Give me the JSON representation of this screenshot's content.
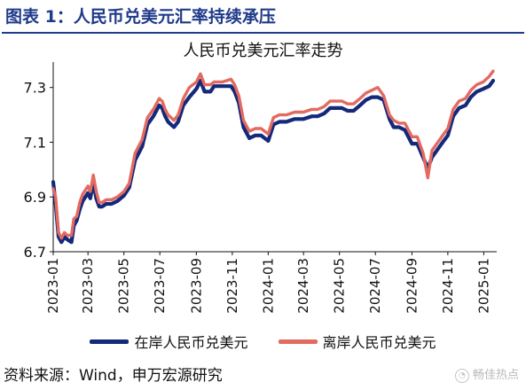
{
  "heading": "图表 1：人民币兑美元汇率持续承压",
  "source": "资料来源：Wind，申万宏源研究",
  "watermark": "畅佳热点",
  "colors": {
    "heading": "#1f3a8a",
    "onshore": "#14297a",
    "offshore": "#e36a60",
    "axis": "#111111"
  },
  "chart_data": {
    "type": "line",
    "title": "人民币兑美元汇率走势",
    "xlabel": "",
    "ylabel": "",
    "ylim": [
      6.7,
      7.38
    ],
    "yticks": [
      6.7,
      6.9,
      7.1,
      7.3
    ],
    "xlim": [
      "2023-01-01",
      "2025-01-20"
    ],
    "xticks": [
      "2023-01",
      "2023-03",
      "2023-05",
      "2023-07",
      "2023-09",
      "2023-11",
      "2024-01",
      "2024-03",
      "2024-05",
      "2024-07",
      "2024-09",
      "2024-11",
      "2025-01"
    ],
    "grid": false,
    "legend": "bottom",
    "series": [
      {
        "name": "在岸人民币兑美元",
        "color": "#14297a",
        "x": [
          "2023-01-01",
          "2023-01-05",
          "2023-01-10",
          "2023-01-15",
          "2023-01-20",
          "2023-01-25",
          "2023-02-01",
          "2023-02-05",
          "2023-02-10",
          "2023-02-15",
          "2023-02-20",
          "2023-03-01",
          "2023-03-05",
          "2023-03-10",
          "2023-03-15",
          "2023-03-20",
          "2023-03-25",
          "2023-04-01",
          "2023-04-10",
          "2023-04-20",
          "2023-05-01",
          "2023-05-10",
          "2023-05-20",
          "2023-06-01",
          "2023-06-10",
          "2023-06-20",
          "2023-06-30",
          "2023-07-05",
          "2023-07-10",
          "2023-07-15",
          "2023-07-25",
          "2023-08-01",
          "2023-08-10",
          "2023-08-20",
          "2023-09-01",
          "2023-09-08",
          "2023-09-15",
          "2023-09-25",
          "2023-10-01",
          "2023-10-15",
          "2023-10-30",
          "2023-11-05",
          "2023-11-12",
          "2023-11-20",
          "2023-11-30",
          "2023-12-10",
          "2023-12-20",
          "2024-01-01",
          "2024-01-10",
          "2024-01-20",
          "2024-02-01",
          "2024-02-15",
          "2024-03-01",
          "2024-03-15",
          "2024-03-25",
          "2024-04-05",
          "2024-04-15",
          "2024-04-25",
          "2024-05-05",
          "2024-05-15",
          "2024-05-25",
          "2024-06-05",
          "2024-06-15",
          "2024-06-25",
          "2024-07-05",
          "2024-07-15",
          "2024-07-25",
          "2024-08-01",
          "2024-08-10",
          "2024-08-20",
          "2024-09-01",
          "2024-09-10",
          "2024-09-20",
          "2024-09-28",
          "2024-10-05",
          "2024-10-15",
          "2024-10-25",
          "2024-11-01",
          "2024-11-10",
          "2024-11-20",
          "2024-12-01",
          "2024-12-10",
          "2024-12-20",
          "2024-12-31",
          "2025-01-10",
          "2025-01-17"
        ],
        "values": [
          6.96,
          6.88,
          6.76,
          6.74,
          6.76,
          6.75,
          6.74,
          6.8,
          6.82,
          6.86,
          6.89,
          6.92,
          6.9,
          6.96,
          6.9,
          6.87,
          6.87,
          6.88,
          6.88,
          6.89,
          6.91,
          6.94,
          7.04,
          7.09,
          7.17,
          7.2,
          7.24,
          7.23,
          7.2,
          7.18,
          7.16,
          7.18,
          7.24,
          7.27,
          7.3,
          7.33,
          7.29,
          7.29,
          7.31,
          7.31,
          7.31,
          7.29,
          7.25,
          7.16,
          7.12,
          7.13,
          7.13,
          7.11,
          7.17,
          7.18,
          7.18,
          7.19,
          7.19,
          7.2,
          7.2,
          7.21,
          7.23,
          7.23,
          7.23,
          7.22,
          7.22,
          7.24,
          7.26,
          7.27,
          7.27,
          7.26,
          7.19,
          7.16,
          7.16,
          7.15,
          7.1,
          7.1,
          7.05,
          7.01,
          7.05,
          7.08,
          7.11,
          7.13,
          7.2,
          7.23,
          7.24,
          7.27,
          7.29,
          7.3,
          7.31,
          7.33
        ]
      },
      {
        "name": "离岸人民币兑美元",
        "color": "#e36a60",
        "x": [
          "2023-01-01",
          "2023-01-05",
          "2023-01-10",
          "2023-01-15",
          "2023-01-20",
          "2023-01-25",
          "2023-02-01",
          "2023-02-05",
          "2023-02-10",
          "2023-02-15",
          "2023-02-20",
          "2023-03-01",
          "2023-03-05",
          "2023-03-10",
          "2023-03-15",
          "2023-03-20",
          "2023-03-25",
          "2023-04-01",
          "2023-04-10",
          "2023-04-20",
          "2023-05-01",
          "2023-05-10",
          "2023-05-20",
          "2023-06-01",
          "2023-06-10",
          "2023-06-20",
          "2023-06-30",
          "2023-07-05",
          "2023-07-10",
          "2023-07-15",
          "2023-07-25",
          "2023-08-01",
          "2023-08-10",
          "2023-08-20",
          "2023-09-01",
          "2023-09-08",
          "2023-09-15",
          "2023-09-25",
          "2023-10-01",
          "2023-10-15",
          "2023-10-30",
          "2023-11-05",
          "2023-11-12",
          "2023-11-20",
          "2023-11-30",
          "2023-12-10",
          "2023-12-20",
          "2024-01-01",
          "2024-01-10",
          "2024-01-20",
          "2024-02-01",
          "2024-02-15",
          "2024-03-01",
          "2024-03-15",
          "2024-03-25",
          "2024-04-05",
          "2024-04-15",
          "2024-04-25",
          "2024-05-05",
          "2024-05-15",
          "2024-05-25",
          "2024-06-05",
          "2024-06-15",
          "2024-06-25",
          "2024-07-05",
          "2024-07-15",
          "2024-07-25",
          "2024-08-01",
          "2024-08-10",
          "2024-08-20",
          "2024-09-01",
          "2024-09-10",
          "2024-09-20",
          "2024-09-28",
          "2024-10-05",
          "2024-10-15",
          "2024-10-25",
          "2024-11-01",
          "2024-11-10",
          "2024-11-20",
          "2024-12-01",
          "2024-12-10",
          "2024-12-20",
          "2024-12-31",
          "2025-01-10",
          "2025-01-17"
        ],
        "values": [
          6.93,
          6.9,
          6.77,
          6.75,
          6.77,
          6.76,
          6.76,
          6.82,
          6.83,
          6.88,
          6.91,
          6.94,
          6.92,
          6.98,
          6.92,
          6.88,
          6.88,
          6.89,
          6.89,
          6.9,
          6.92,
          6.95,
          7.06,
          7.11,
          7.19,
          7.22,
          7.26,
          7.25,
          7.22,
          7.2,
          7.18,
          7.2,
          7.26,
          7.3,
          7.32,
          7.35,
          7.31,
          7.31,
          7.32,
          7.32,
          7.33,
          7.31,
          7.27,
          7.18,
          7.14,
          7.15,
          7.15,
          7.13,
          7.19,
          7.2,
          7.2,
          7.21,
          7.21,
          7.22,
          7.22,
          7.23,
          7.25,
          7.25,
          7.25,
          7.24,
          7.24,
          7.26,
          7.28,
          7.29,
          7.3,
          7.27,
          7.2,
          7.18,
          7.17,
          7.17,
          7.12,
          7.12,
          7.06,
          6.97,
          7.07,
          7.1,
          7.13,
          7.15,
          7.22,
          7.25,
          7.26,
          7.29,
          7.31,
          7.32,
          7.34,
          7.36
        ]
      }
    ]
  }
}
